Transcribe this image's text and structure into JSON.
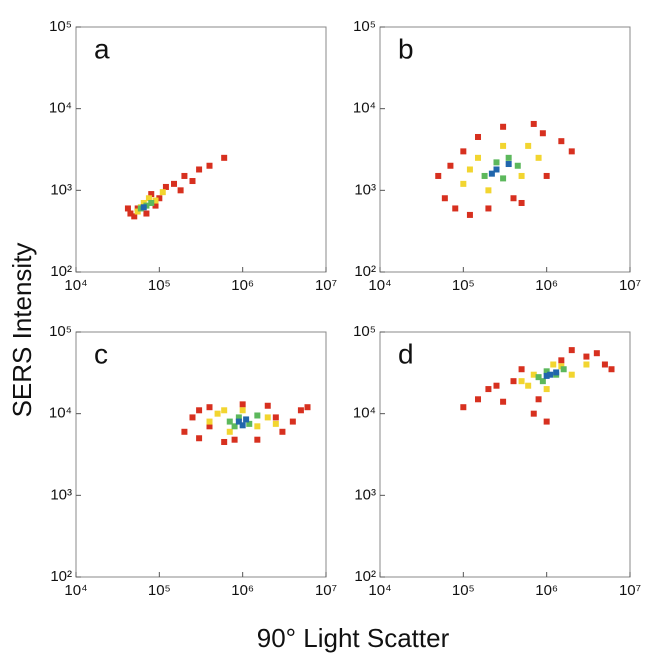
{
  "ylabel": "SERS Intensity",
  "xlabel": "90° Light Scatter",
  "chart_data": [
    {
      "type": "scatter",
      "label": "a",
      "xscale": "log",
      "yscale": "log",
      "xlim": [
        10000,
        10000000
      ],
      "ylim": [
        100,
        100000
      ],
      "xticks": [
        {
          "value": 10000,
          "label": "10⁴"
        },
        {
          "value": 100000,
          "label": "10⁵"
        },
        {
          "value": 1000000,
          "label": "10⁶"
        },
        {
          "value": 10000000,
          "label": "10⁷"
        }
      ],
      "yticks": [
        {
          "value": 100,
          "label": "10²"
        },
        {
          "value": 1000,
          "label": "10³"
        },
        {
          "value": 10000,
          "label": "10⁴"
        },
        {
          "value": 100000,
          "label": "10⁵"
        }
      ],
      "series": [
        {
          "color": "#d7301f",
          "x": [
            45000,
            50000,
            55000,
            70000,
            80000,
            100000,
            120000,
            150000,
            200000,
            250000,
            300000,
            400000,
            600000,
            180000,
            42000,
            90000
          ],
          "values": [
            520,
            480,
            600,
            520,
            900,
            800,
            1100,
            1200,
            1500,
            1300,
            1800,
            2000,
            2500,
            1000,
            600,
            650
          ]
        },
        {
          "color": "#f2d530",
          "x": [
            55000,
            65000,
            75000,
            90000,
            110000,
            60000
          ],
          "values": [
            550,
            700,
            800,
            750,
            950,
            620
          ]
        },
        {
          "color": "#5cb85c",
          "x": [
            60000,
            70000,
            80000
          ],
          "values": [
            600,
            650,
            700
          ]
        },
        {
          "color": "#2166ac",
          "x": [
            65000
          ],
          "values": [
            620
          ]
        }
      ]
    },
    {
      "type": "scatter",
      "label": "b",
      "xscale": "log",
      "yscale": "log",
      "xlim": [
        10000,
        10000000
      ],
      "ylim": [
        100,
        100000
      ],
      "xticks": [
        {
          "value": 10000,
          "label": "10⁴"
        },
        {
          "value": 100000,
          "label": "10⁵"
        },
        {
          "value": 1000000,
          "label": "10⁶"
        },
        {
          "value": 10000000,
          "label": "10⁷"
        }
      ],
      "yticks": [
        {
          "value": 100,
          "label": "10²"
        },
        {
          "value": 1000,
          "label": "10³"
        },
        {
          "value": 10000,
          "label": "10⁴"
        },
        {
          "value": 100000,
          "label": "10⁵"
        }
      ],
      "series": [
        {
          "color": "#d7301f",
          "x": [
            50000,
            60000,
            80000,
            100000,
            120000,
            150000,
            200000,
            300000,
            500000,
            700000,
            1000000,
            1500000,
            2000000,
            70000,
            400000,
            900000
          ],
          "values": [
            1500,
            800,
            600,
            3000,
            500,
            4500,
            600,
            6000,
            700,
            6500,
            1500,
            4000,
            3000,
            2000,
            800,
            5000
          ]
        },
        {
          "color": "#f2d530",
          "x": [
            100000,
            150000,
            200000,
            300000,
            500000,
            600000,
            120000,
            800000
          ],
          "values": [
            1200,
            2500,
            1000,
            3500,
            1500,
            3500,
            1800,
            2500
          ]
        },
        {
          "color": "#5cb85c",
          "x": [
            180000,
            250000,
            350000,
            450000,
            300000
          ],
          "values": [
            1500,
            2200,
            2500,
            2000,
            1400
          ]
        },
        {
          "color": "#2166ac",
          "x": [
            250000,
            220000,
            350000
          ],
          "values": [
            1800,
            1600,
            2100
          ]
        }
      ]
    },
    {
      "type": "scatter",
      "label": "c",
      "xscale": "log",
      "yscale": "log",
      "xlim": [
        10000,
        10000000
      ],
      "ylim": [
        100,
        100000
      ],
      "xticks": [
        {
          "value": 10000,
          "label": "10⁴"
        },
        {
          "value": 100000,
          "label": "10⁵"
        },
        {
          "value": 1000000,
          "label": "10⁶"
        },
        {
          "value": 10000000,
          "label": "10⁷"
        }
      ],
      "yticks": [
        {
          "value": 100,
          "label": "10²"
        },
        {
          "value": 1000,
          "label": "10³"
        },
        {
          "value": 10000,
          "label": "10⁴"
        },
        {
          "value": 100000,
          "label": "10⁵"
        }
      ],
      "series": [
        {
          "color": "#d7301f",
          "x": [
            200000,
            250000,
            300000,
            400000,
            600000,
            1000000,
            1500000,
            2000000,
            3000000,
            5000000,
            6000000,
            400000,
            2500000,
            800000,
            4000000,
            300000
          ],
          "values": [
            6000,
            9000,
            5000,
            12000,
            4500,
            13000,
            4800,
            12500,
            6000,
            11000,
            12000,
            7000,
            9000,
            4800,
            8000,
            11000
          ]
        },
        {
          "color": "#f2d530",
          "x": [
            400000,
            500000,
            700000,
            1000000,
            1500000,
            2000000,
            600000,
            2500000
          ],
          "values": [
            8000,
            10000,
            6000,
            11000,
            7000,
            9000,
            11000,
            7500
          ]
        },
        {
          "color": "#5cb85c",
          "x": [
            700000,
            900000,
            1200000,
            1500000,
            800000
          ],
          "values": [
            8000,
            9000,
            7500,
            9500,
            7000
          ]
        },
        {
          "color": "#2166ac",
          "x": [
            900000,
            1100000,
            1000000
          ],
          "values": [
            8000,
            8500,
            7200
          ]
        }
      ]
    },
    {
      "type": "scatter",
      "label": "d",
      "xscale": "log",
      "yscale": "log",
      "xlim": [
        10000,
        10000000
      ],
      "ylim": [
        100,
        100000
      ],
      "xticks": [
        {
          "value": 10000,
          "label": "10⁴"
        },
        {
          "value": 100000,
          "label": "10⁵"
        },
        {
          "value": 1000000,
          "label": "10⁶"
        },
        {
          "value": 10000000,
          "label": "10⁷"
        }
      ],
      "yticks": [
        {
          "value": 100,
          "label": "10²"
        },
        {
          "value": 1000,
          "label": "10³"
        },
        {
          "value": 10000,
          "label": "10⁴"
        },
        {
          "value": 100000,
          "label": "10⁵"
        }
      ],
      "series": [
        {
          "color": "#d7301f",
          "x": [
            100000,
            150000,
            200000,
            300000,
            400000,
            500000,
            700000,
            1000000,
            1500000,
            2000000,
            3000000,
            5000000,
            6000000,
            800000,
            250000,
            4000000
          ],
          "values": [
            12000,
            15000,
            20000,
            14000,
            25000,
            35000,
            10000,
            8000,
            45000,
            60000,
            50000,
            40000,
            35000,
            15000,
            22000,
            55000
          ]
        },
        {
          "color": "#f2d530",
          "x": [
            500000,
            700000,
            1000000,
            1500000,
            2000000,
            3000000,
            600000,
            1200000
          ],
          "values": [
            25000,
            30000,
            20000,
            38000,
            30000,
            40000,
            22000,
            40000
          ]
        },
        {
          "color": "#5cb85c",
          "x": [
            800000,
            1000000,
            1300000,
            1600000,
            900000
          ],
          "values": [
            28000,
            33000,
            30000,
            35000,
            25000
          ]
        },
        {
          "color": "#2166ac",
          "x": [
            1100000,
            1300000,
            1000000
          ],
          "values": [
            30000,
            32000,
            29000
          ]
        }
      ]
    }
  ]
}
